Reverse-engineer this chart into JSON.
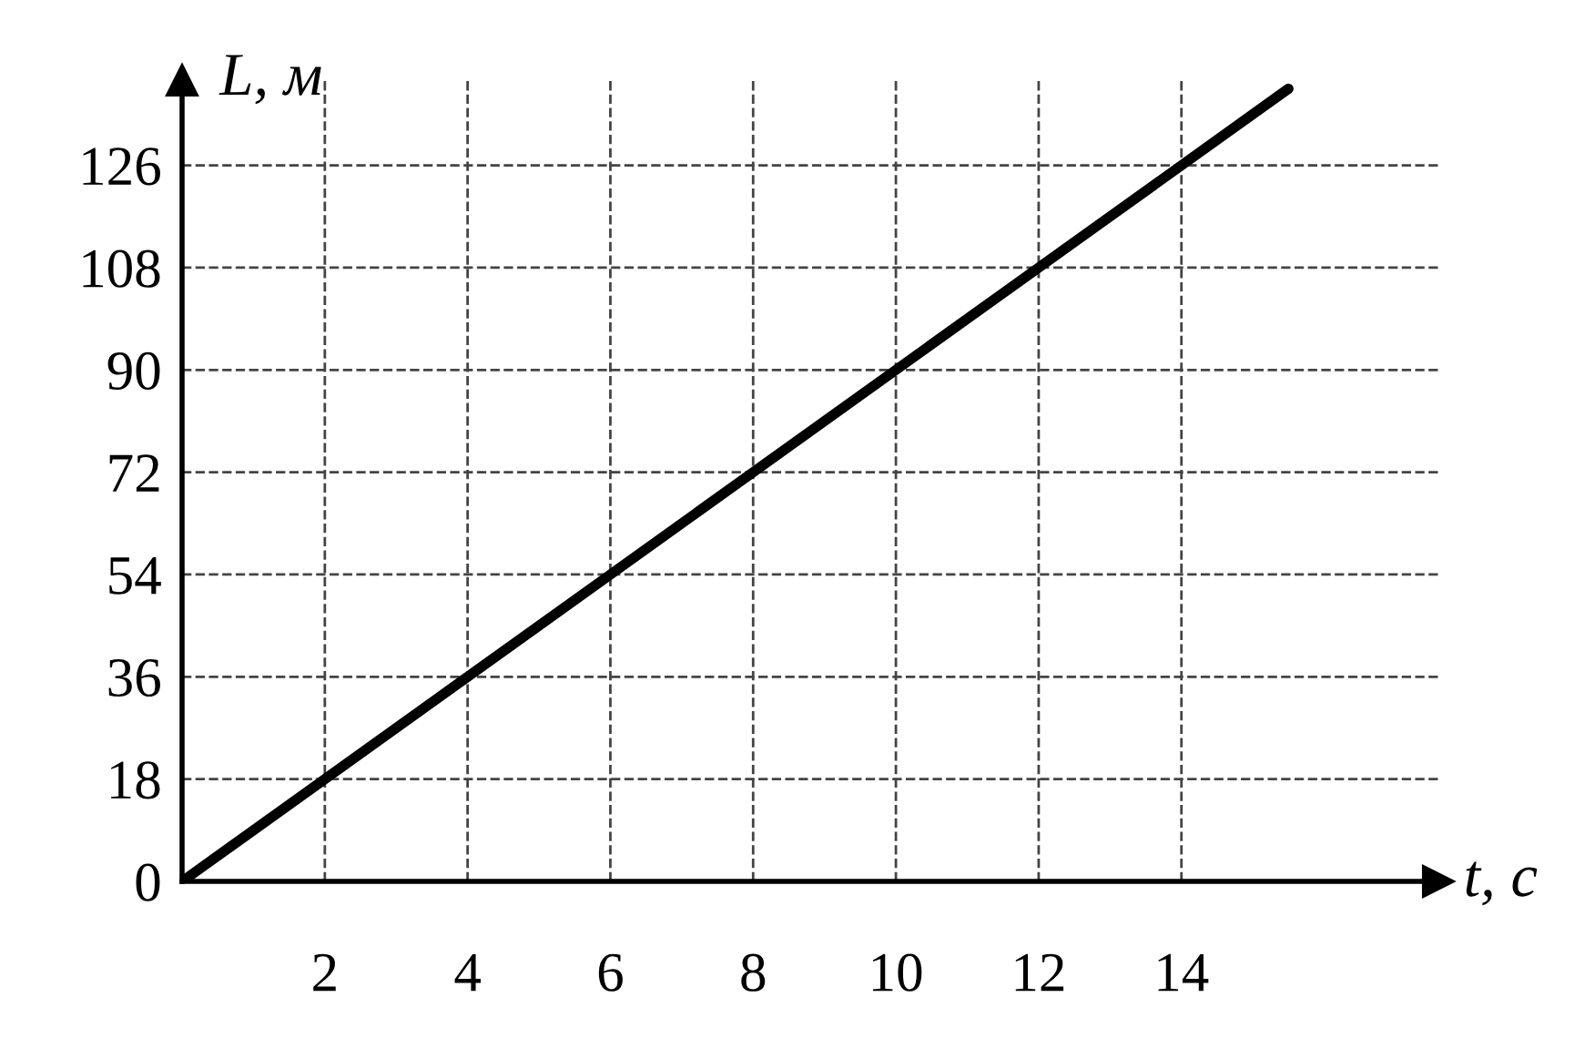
{
  "chart_data": {
    "type": "line",
    "xlabel": "t, с",
    "ylabel": "L, м",
    "x": [
      0,
      15.5
    ],
    "series": [
      {
        "color": "#000000",
        "values": [
          0,
          139.5
        ]
      }
    ],
    "xlim": [
      0,
      17.6
    ],
    "ylim": [
      0,
      141
    ],
    "xticks": [
      2,
      4,
      6,
      8,
      10,
      12,
      14
    ],
    "yticks": [
      0,
      18,
      36,
      54,
      72,
      90,
      108,
      126
    ],
    "grid": true,
    "line_style": "solid",
    "marker": "none",
    "legend": false
  }
}
